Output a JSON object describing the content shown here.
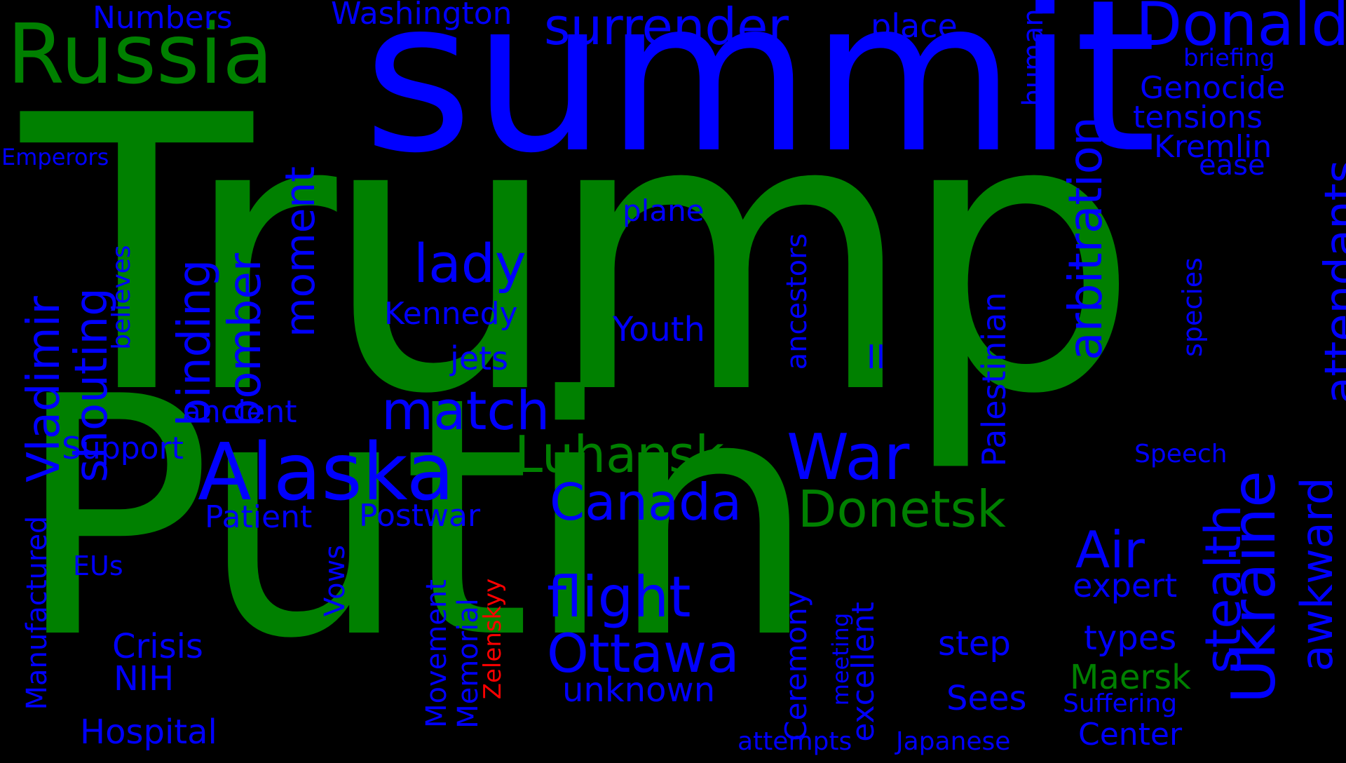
{
  "colors": {
    "background": "#000000",
    "green": "#008000",
    "blue": "#0000ff",
    "red": "#ff0000"
  },
  "words": {
    "trump": "Trump",
    "putin": "Putin",
    "summit": "summit",
    "russia": "Russia",
    "donald": "Donald",
    "surrender": "surrender",
    "numbers": "Numbers",
    "washington": "Washington",
    "place": "place",
    "briefing": "briefing",
    "genocide": "Genocide",
    "tensions": "tensions",
    "kremlin": "Kremlin",
    "ease": "ease",
    "emperors": "Emperors",
    "human": "human",
    "arbitration": "arbitration",
    "attendants": "attendants",
    "awkward": "awkward",
    "ukraine": "Ukraine",
    "stealth": "stealth",
    "species": "species",
    "plane": "plane",
    "lady": "lady",
    "moment": "moment",
    "bomber": "bomber",
    "binding": "binding",
    "shouting": "shouting",
    "vladimir": "Vladimir",
    "believes": "believes",
    "kennedy": "Kennedy",
    "youth": "Youth",
    "jets": "jets",
    "ii": "II",
    "ancestors": "ancestors",
    "palestinian": "Palestinian",
    "ancient": "ancient",
    "match": "match",
    "support": "Support",
    "alaska": "Alaska",
    "luhansk": "Luhansk",
    "war": "War",
    "canada": "Canada",
    "donetsk": "Donetsk",
    "patient": "Patient",
    "postwar": "Postwar",
    "speech": "Speech",
    "air": "Air",
    "expert": "expert",
    "manufactured": "Manufactured",
    "eus": "EUs",
    "vows": "Vows",
    "flight": "flight",
    "ottawa": "Ottawa",
    "unknown": "unknown",
    "crisis": "Crisis",
    "nih": "NIH",
    "hospital": "Hospital",
    "movement": "Movement",
    "memorial": "Memorial",
    "zelenskyy": "Zelenskyy",
    "ceremony": "Ceremony",
    "meeting": "meeting",
    "excellent": "excellent",
    "step": "step",
    "types": "types",
    "maersk": "Maersk",
    "suffering": "Suffering",
    "sees": "Sees",
    "center": "Center",
    "attempts": "attempts",
    "japanese": "Japanese"
  }
}
